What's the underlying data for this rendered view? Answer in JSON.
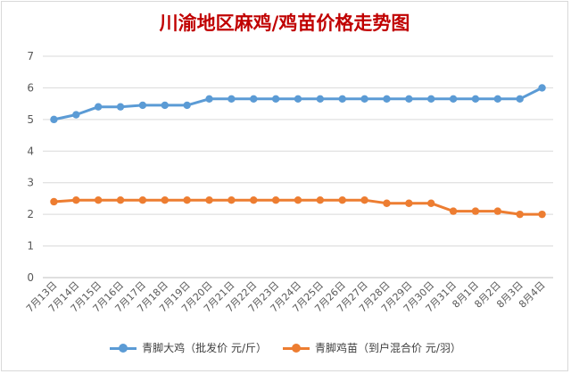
{
  "chart_data": {
    "type": "line",
    "title": "川渝地区麻鸡/鸡苗价格走势图",
    "categories": [
      "7月13日",
      "7月14日",
      "7月15日",
      "7月16日",
      "7月17日",
      "7月18日",
      "7月19日",
      "7月20日",
      "7月21日",
      "7月22日",
      "7月23日",
      "7月24日",
      "7月25日",
      "7月26日",
      "7月27日",
      "7月28日",
      "7月29日",
      "7月30日",
      "7月31日",
      "8月1日",
      "8月2日",
      "8月3日",
      "8月4日"
    ],
    "series": [
      {
        "name": "青脚大鸡（批发价 元/斤）",
        "color": "#5b9bd5",
        "values": [
          5.0,
          5.15,
          5.4,
          5.4,
          5.45,
          5.45,
          5.45,
          5.65,
          5.65,
          5.65,
          5.65,
          5.65,
          5.65,
          5.65,
          5.65,
          5.65,
          5.65,
          5.65,
          5.65,
          5.65,
          5.65,
          5.65,
          6.0
        ]
      },
      {
        "name": "青脚鸡苗（到户混合价 元/羽）",
        "color": "#ed7d31",
        "values": [
          2.4,
          2.45,
          2.45,
          2.45,
          2.45,
          2.45,
          2.45,
          2.45,
          2.45,
          2.45,
          2.45,
          2.45,
          2.45,
          2.45,
          2.45,
          2.35,
          2.35,
          2.35,
          2.1,
          2.1,
          2.1,
          2.0,
          2.0
        ]
      }
    ],
    "ylim": [
      0,
      7
    ],
    "yticks": [
      0,
      1,
      2,
      3,
      4,
      5,
      6,
      7
    ],
    "grid": true,
    "legend_position": "bottom"
  }
}
